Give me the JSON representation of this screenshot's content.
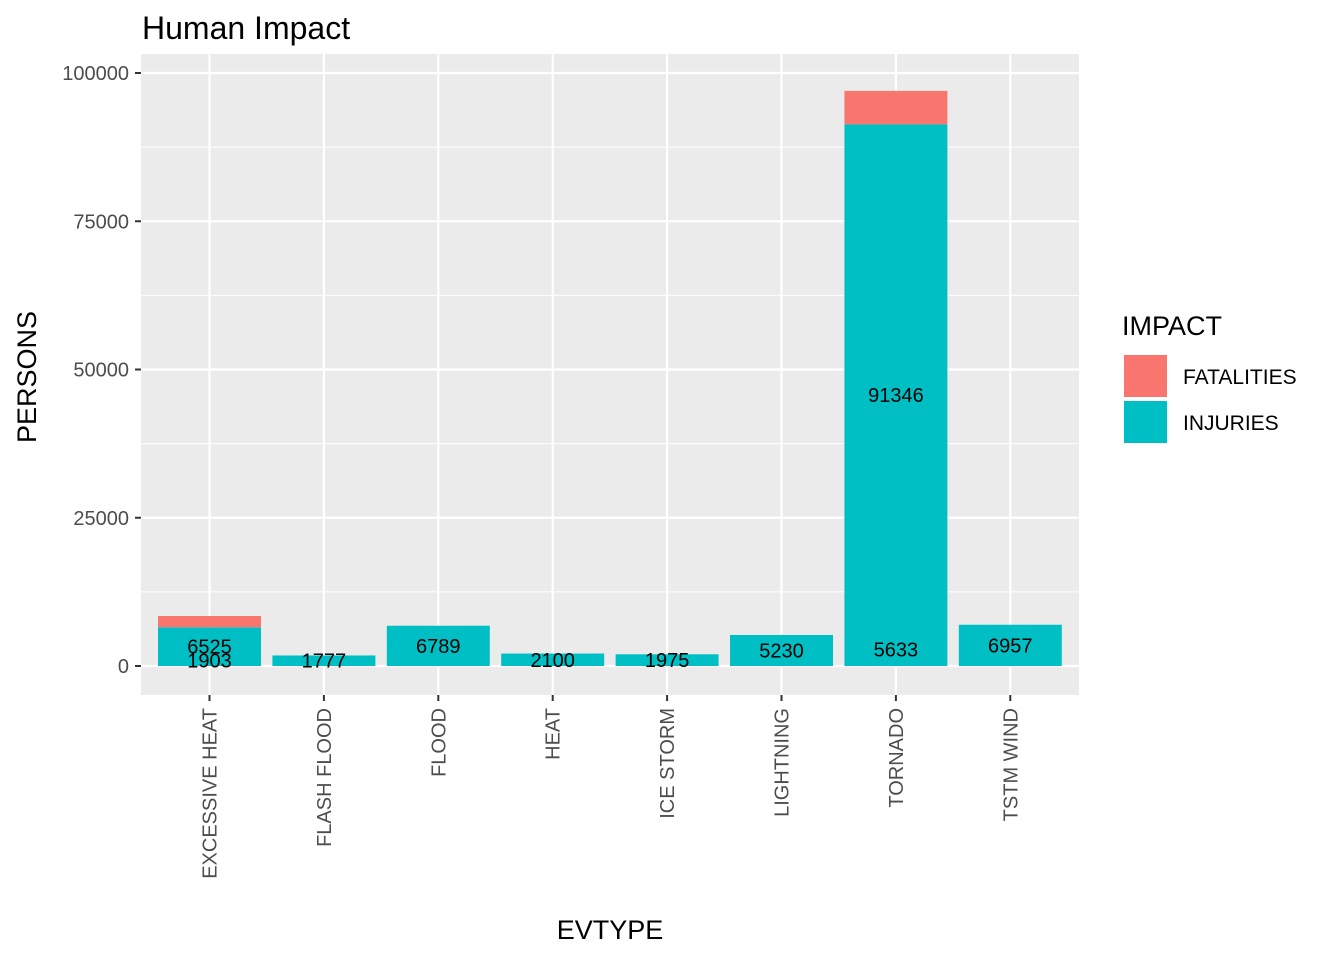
{
  "chart_data": {
    "type": "bar",
    "stacked": true,
    "title": "Human Impact",
    "xlabel": "EVTYPE",
    "ylabel": "PERSONS",
    "categories": [
      "EXCESSIVE HEAT",
      "FLASH FLOOD",
      "FLOOD",
      "HEAT",
      "ICE STORM",
      "LIGHTNING",
      "TORNADO",
      "TSTM WIND"
    ],
    "series": [
      {
        "name": "FATALITIES",
        "color": "#F8766D",
        "values": [
          1903,
          null,
          null,
          null,
          null,
          null,
          5633,
          null
        ]
      },
      {
        "name": "INJURIES",
        "color": "#00BFC4",
        "values": [
          6525,
          1777,
          6789,
          2100,
          1975,
          5230,
          91346,
          6957
        ]
      }
    ],
    "ylim": [
      0,
      100000
    ],
    "yticks": [
      0,
      25000,
      50000,
      75000,
      100000
    ],
    "grid": true,
    "legend": {
      "title": "IMPACT",
      "placement": "right"
    }
  }
}
